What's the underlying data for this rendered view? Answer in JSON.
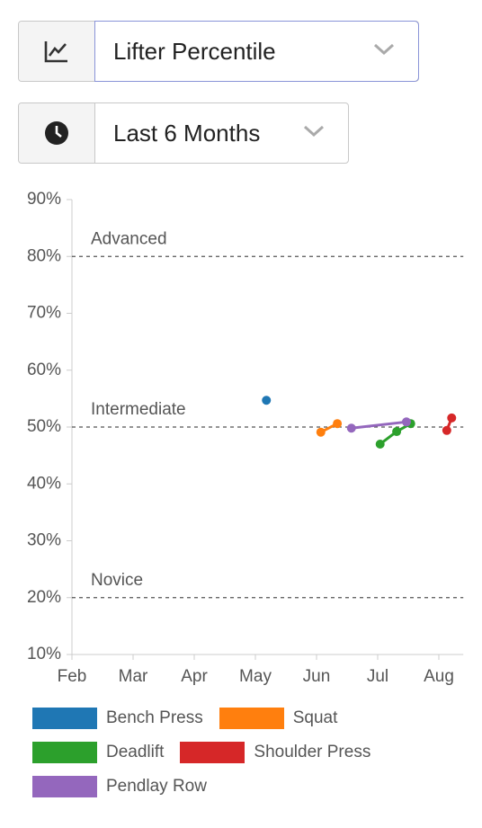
{
  "controls": {
    "metric": "Lifter Percentile",
    "period": "Last 6 Months"
  },
  "chart_data": {
    "type": "line",
    "xlim": [
      0,
      6.4
    ],
    "xticks": [
      {
        "value": 0,
        "label": "Feb"
      },
      {
        "value": 1,
        "label": "Mar"
      },
      {
        "value": 2,
        "label": "Apr"
      },
      {
        "value": 3,
        "label": "May"
      },
      {
        "value": 4,
        "label": "Jun"
      },
      {
        "value": 5,
        "label": "Jul"
      },
      {
        "value": 6,
        "label": "Aug"
      }
    ],
    "ylim": [
      10,
      90
    ],
    "yticks": [
      {
        "value": 10,
        "label": "10%"
      },
      {
        "value": 20,
        "label": "20%"
      },
      {
        "value": 30,
        "label": "30%"
      },
      {
        "value": 40,
        "label": "40%"
      },
      {
        "value": 50,
        "label": "50%"
      },
      {
        "value": 60,
        "label": "60%"
      },
      {
        "value": 70,
        "label": "70%"
      },
      {
        "value": 80,
        "label": "80%"
      },
      {
        "value": 90,
        "label": "90%"
      }
    ],
    "reference_lines": [
      {
        "value": 80,
        "label": "Advanced"
      },
      {
        "value": 50,
        "label": "Intermediate"
      },
      {
        "value": 20,
        "label": "Novice"
      }
    ],
    "series": [
      {
        "name": "Bench Press",
        "color": "#1f77b4",
        "x": [
          3.18
        ],
        "values": [
          54.7
        ]
      },
      {
        "name": "Squat",
        "color": "#ff7f0e",
        "x": [
          4.07,
          4.34
        ],
        "values": [
          49.1,
          50.6
        ]
      },
      {
        "name": "Deadlift",
        "color": "#2ca02c",
        "x": [
          5.04,
          5.31,
          5.54
        ],
        "values": [
          47.0,
          49.2,
          50.6
        ]
      },
      {
        "name": "Shoulder Press",
        "color": "#d62728",
        "x": [
          6.13,
          6.21
        ],
        "values": [
          49.4,
          51.6
        ]
      },
      {
        "name": "Pendlay Row",
        "color": "#9467bd",
        "x": [
          4.57,
          5.47
        ],
        "values": [
          49.8,
          50.9
        ]
      }
    ]
  }
}
